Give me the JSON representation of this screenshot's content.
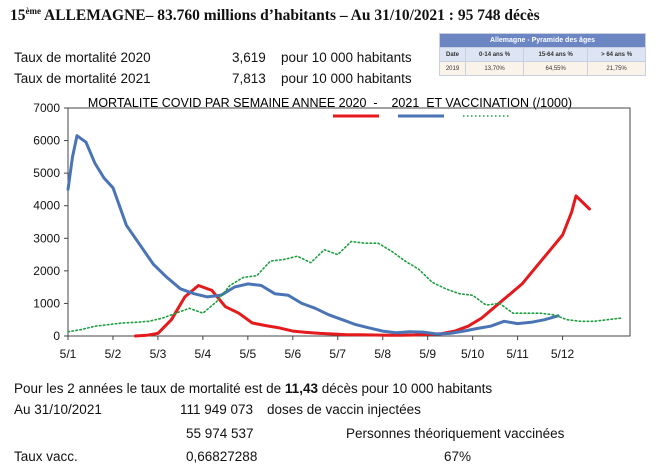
{
  "header": {
    "rank": "15",
    "rank_suffix": "ème",
    "title_rest": " ALLEMAGNE– 83.760 millions d’habitants – Au 31/10/2021 : 95 748 décès"
  },
  "mortality": [
    {
      "label": "Taux de mortalité 2020",
      "value": "3,619",
      "unit": "pour 10 000 habitants"
    },
    {
      "label": "Taux de mortalité 2021",
      "value": "7,813",
      "unit": "pour 10 000 habitants"
    }
  ],
  "pyramid": {
    "title": "Allemagne - Pyramide des âges",
    "headers": [
      "Date",
      "0-14 ans %",
      "15-64 ans %",
      "> 64 ans %"
    ],
    "row": [
      "2019",
      "13,70%",
      "64,55%",
      "21,75%"
    ]
  },
  "chart_data": {
    "type": "line",
    "title": "MORTALITE COVID PAR SEMAINE ANNEE 2020  -    2021  ET VACCINATION (/1000)",
    "categories": [
      "5/1",
      "5/2",
      "5/3",
      "5/4",
      "5/5",
      "5/6",
      "5/7",
      "5/8",
      "5/9",
      "5/10",
      "5/11",
      "5/12"
    ],
    "ylim": [
      0,
      7000
    ],
    "yticks": [
      0,
      1000,
      2000,
      3000,
      4000,
      5000,
      6000,
      7000
    ],
    "grid": false,
    "legend_position": "top-right",
    "series": [
      {
        "name": "",
        "color": "#e41a1c",
        "style": "solid",
        "points": [
          [
            2.5,
            0
          ],
          [
            2.75,
            20
          ],
          [
            3.0,
            80
          ],
          [
            3.3,
            500
          ],
          [
            3.6,
            1200
          ],
          [
            3.9,
            1550
          ],
          [
            4.2,
            1400
          ],
          [
            4.5,
            900
          ],
          [
            4.8,
            700
          ],
          [
            5.1,
            400
          ],
          [
            5.4,
            320
          ],
          [
            5.7,
            250
          ],
          [
            6.0,
            150
          ],
          [
            6.3,
            110
          ],
          [
            6.6,
            80
          ],
          [
            6.9,
            60
          ],
          [
            7.2,
            40
          ],
          [
            7.5,
            40
          ],
          [
            7.8,
            30
          ],
          [
            8.1,
            20
          ],
          [
            8.4,
            20
          ],
          [
            8.7,
            30
          ],
          [
            9.0,
            50
          ],
          [
            9.3,
            70
          ],
          [
            9.6,
            150
          ],
          [
            9.9,
            300
          ],
          [
            10.2,
            550
          ],
          [
            10.5,
            900
          ],
          [
            10.8,
            1250
          ],
          [
            11.1,
            1600
          ],
          [
            11.4,
            2100
          ],
          [
            11.7,
            2600
          ],
          [
            12.0,
            3100
          ],
          [
            12.2,
            3800
          ],
          [
            12.3,
            4300
          ],
          [
            12.45,
            4100
          ],
          [
            12.6,
            3900
          ]
        ]
      },
      {
        "name": "",
        "color": "#4a74b5",
        "style": "solid",
        "points": [
          [
            1.0,
            4500
          ],
          [
            1.1,
            5500
          ],
          [
            1.2,
            6150
          ],
          [
            1.4,
            5950
          ],
          [
            1.6,
            5300
          ],
          [
            1.8,
            4850
          ],
          [
            2.0,
            4550
          ],
          [
            2.3,
            3400
          ],
          [
            2.6,
            2800
          ],
          [
            2.9,
            2200
          ],
          [
            3.2,
            1800
          ],
          [
            3.5,
            1450
          ],
          [
            3.8,
            1300
          ],
          [
            4.1,
            1200
          ],
          [
            4.4,
            1250
          ],
          [
            4.7,
            1500
          ],
          [
            5.0,
            1600
          ],
          [
            5.3,
            1550
          ],
          [
            5.6,
            1300
          ],
          [
            5.9,
            1250
          ],
          [
            6.2,
            1000
          ],
          [
            6.5,
            850
          ],
          [
            6.8,
            650
          ],
          [
            7.1,
            500
          ],
          [
            7.4,
            350
          ],
          [
            7.7,
            250
          ],
          [
            8.0,
            150
          ],
          [
            8.3,
            100
          ],
          [
            8.6,
            130
          ],
          [
            8.9,
            120
          ],
          [
            9.2,
            60
          ],
          [
            9.5,
            80
          ],
          [
            9.8,
            150
          ],
          [
            10.1,
            230
          ],
          [
            10.4,
            300
          ],
          [
            10.7,
            450
          ],
          [
            11.0,
            380
          ],
          [
            11.3,
            420
          ],
          [
            11.6,
            500
          ],
          [
            11.9,
            620
          ]
        ]
      },
      {
        "name": "",
        "color": "#1f9e3f",
        "style": "dotted",
        "points": [
          [
            1.0,
            130
          ],
          [
            1.3,
            200
          ],
          [
            1.6,
            300
          ],
          [
            1.9,
            350
          ],
          [
            2.2,
            400
          ],
          [
            2.5,
            420
          ],
          [
            2.8,
            450
          ],
          [
            3.1,
            550
          ],
          [
            3.4,
            700
          ],
          [
            3.7,
            850
          ],
          [
            4.0,
            700
          ],
          [
            4.3,
            1050
          ],
          [
            4.6,
            1550
          ],
          [
            4.9,
            1800
          ],
          [
            5.2,
            1850
          ],
          [
            5.5,
            2300
          ],
          [
            5.8,
            2350
          ],
          [
            6.1,
            2450
          ],
          [
            6.4,
            2250
          ],
          [
            6.7,
            2650
          ],
          [
            7.0,
            2500
          ],
          [
            7.3,
            2900
          ],
          [
            7.6,
            2850
          ],
          [
            7.9,
            2850
          ],
          [
            8.2,
            2600
          ],
          [
            8.5,
            2300
          ],
          [
            8.8,
            2050
          ],
          [
            9.1,
            1650
          ],
          [
            9.4,
            1450
          ],
          [
            9.7,
            1300
          ],
          [
            10.0,
            1250
          ],
          [
            10.3,
            950
          ],
          [
            10.6,
            1000
          ],
          [
            10.9,
            700
          ],
          [
            11.2,
            700
          ],
          [
            11.5,
            700
          ],
          [
            11.8,
            650
          ],
          [
            12.1,
            500
          ],
          [
            12.4,
            450
          ],
          [
            12.7,
            450
          ],
          [
            13.0,
            500
          ],
          [
            13.3,
            550
          ]
        ]
      }
    ]
  },
  "summary": {
    "line1_prefix": "Pour les 2 années le taux de mortalité est de ",
    "line1_value": "11,43",
    "line1_suffix": " décès pour 10 000 habitants",
    "date_label": "Au 31/10/2021",
    "doses_value": "111 949 073",
    "doses_label": "doses de vaccin injectées",
    "persons_value": "55 974 537",
    "persons_label": "Personnes théoriquement vaccinées",
    "rate_label": "Taux vacc.",
    "rate_value": "0,66827288",
    "rate_percent": "67%"
  }
}
